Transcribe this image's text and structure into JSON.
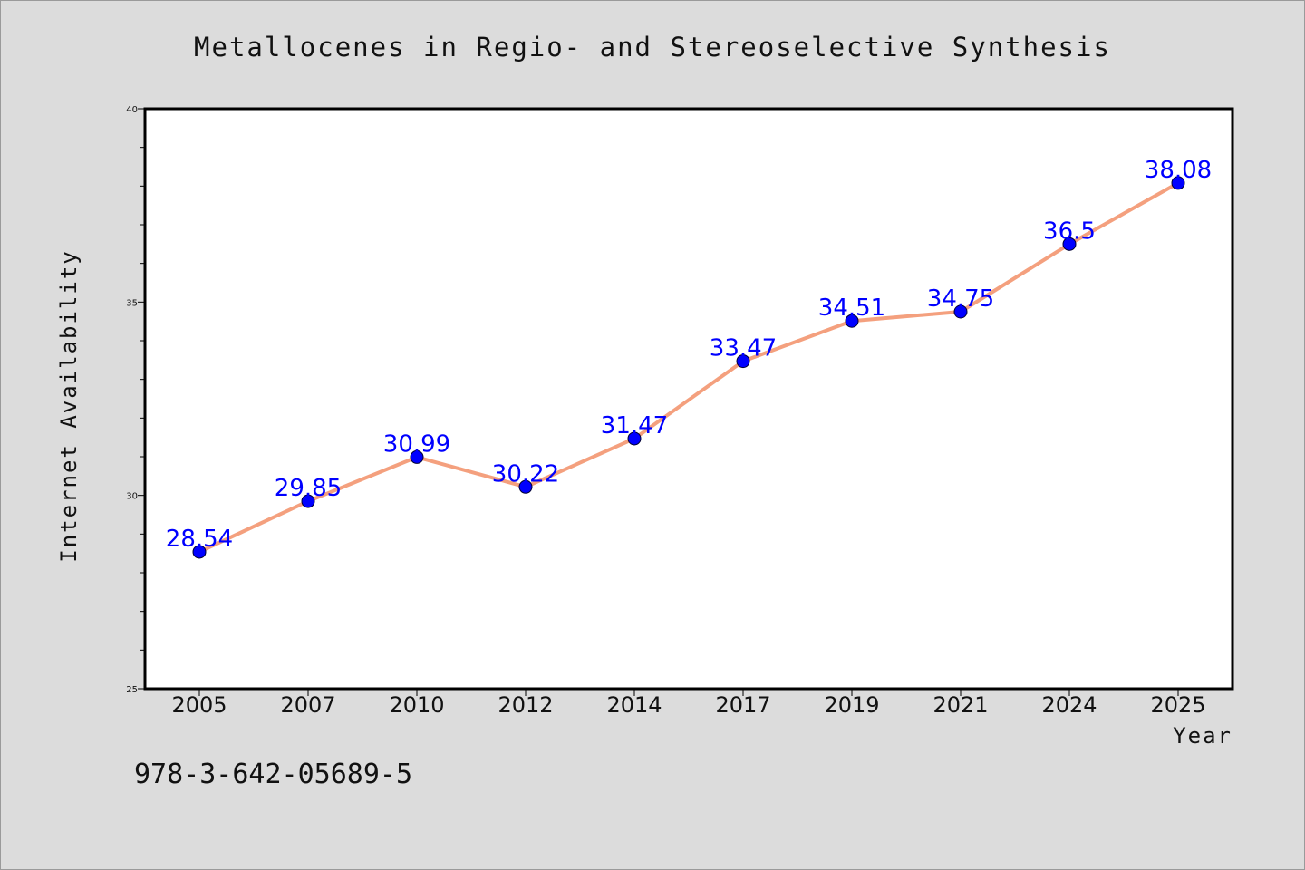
{
  "colors": {
    "background": "#dcdcdc",
    "plot_background": "#ffffff",
    "line": "#f4a07e",
    "marker": "#0000ff",
    "data_label": "#0000ff"
  },
  "footer_note": "978-3-642-05689-5",
  "chart_data": {
    "type": "line",
    "title": "Metallocenes in Regio- and Stereoselective Synthesis",
    "xlabel": "Year",
    "ylabel": "Internet Availability",
    "categories": [
      "2005",
      "2007",
      "2010",
      "2012",
      "2014",
      "2017",
      "2019",
      "2021",
      "2024",
      "2025"
    ],
    "series": [
      {
        "values": [
          28.54,
          29.85,
          30.99,
          30.22,
          31.47,
          33.47,
          34.51,
          34.75,
          36.5,
          38.08
        ],
        "labels": [
          "28.54",
          "29.85",
          "30.99",
          "30.22",
          "31.47",
          "33.47",
          "34.51",
          "34.75",
          "36.5",
          "38.08"
        ]
      }
    ],
    "ylim": [
      25,
      40
    ],
    "yticks": [
      25,
      30,
      35,
      40
    ],
    "y_minor_step": 1,
    "grid": false,
    "legend": "none",
    "markers": true,
    "data_labels": true
  }
}
